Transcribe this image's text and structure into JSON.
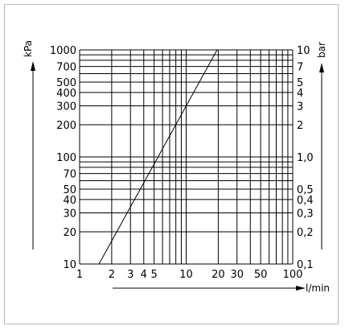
{
  "chart_data": {
    "type": "line",
    "title": "",
    "x_scale": "log",
    "y_scale": "log",
    "xlim": [
      1,
      100
    ],
    "ylim": [
      10,
      1000
    ],
    "grid": true,
    "xlabel": "l/min",
    "ylabel_left": "kPa",
    "ylabel_right": "bar",
    "x_ticks": [
      1,
      2,
      3,
      4,
      5,
      10,
      20,
      30,
      50,
      100
    ],
    "x_tick_labels": [
      "1",
      "2",
      "3",
      "4",
      "5",
      "10",
      "20",
      "30",
      "50",
      "100"
    ],
    "y_ticks_left": [
      10,
      20,
      30,
      40,
      50,
      70,
      100,
      200,
      300,
      400,
      500,
      700,
      1000
    ],
    "y_tick_labels_left": [
      "10",
      "20",
      "30",
      "40",
      "50",
      "70",
      "100",
      "200",
      "300",
      "400",
      "500",
      "700",
      "1000"
    ],
    "y_ticks_right": [
      10,
      20,
      30,
      40,
      50,
      100,
      200,
      300,
      400,
      500,
      700,
      1000
    ],
    "y_tick_labels_right": [
      "0,1",
      "0,2",
      "0,3",
      "0,4",
      "0,5",
      "1,0",
      "2",
      "3",
      "4",
      "5",
      "7",
      "10"
    ],
    "series": [
      {
        "points": [
          [
            1.52,
            10
          ],
          [
            19.5,
            1000
          ]
        ]
      }
    ]
  }
}
